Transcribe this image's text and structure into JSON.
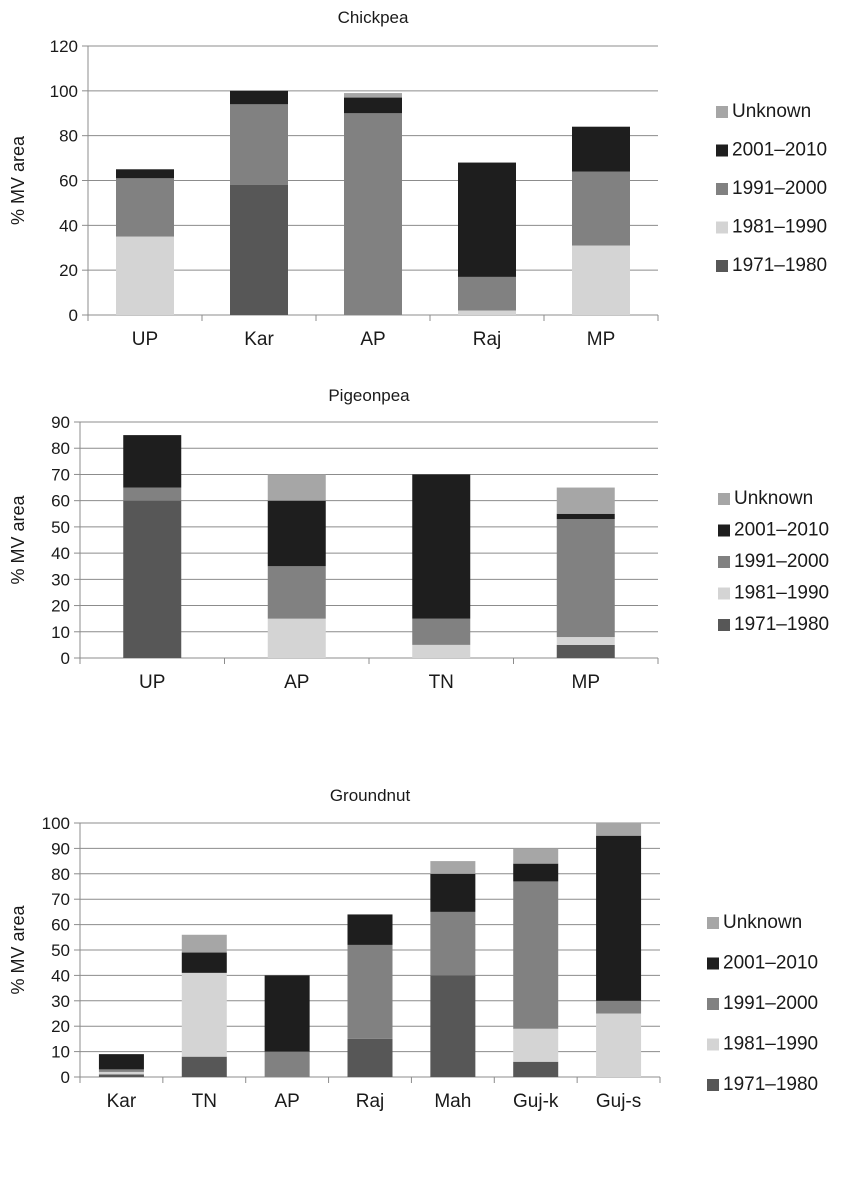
{
  "colors": {
    "Unknown": "#a6a6a6",
    "2001–2010": "#1e1e1e",
    "1991–2000": "#818181",
    "1981–1990": "#d4d4d4",
    "1971–1980": "#575757"
  },
  "legend": [
    "Unknown",
    "2001–2010",
    "1991–2000",
    "1981–1990",
    "1971–1980"
  ],
  "chart_data": [
    {
      "type": "bar",
      "stacked": true,
      "title": "Chickpea",
      "ylabel": "% MV area",
      "ylim": [
        0,
        120
      ],
      "ystep": 20,
      "yticks": [
        "0",
        "20",
        "40",
        "60",
        "80",
        "100",
        "120"
      ],
      "categories": [
        "UP",
        "Kar",
        "AP",
        "Raj",
        "MP"
      ],
      "series": [
        {
          "name": "1971–1980",
          "values": [
            0,
            58,
            0,
            0,
            0
          ]
        },
        {
          "name": "1981–1990",
          "values": [
            35,
            0,
            0,
            2,
            31
          ]
        },
        {
          "name": "1991–2000",
          "values": [
            26,
            36,
            90,
            15,
            33
          ]
        },
        {
          "name": "2001–2010",
          "values": [
            4,
            6,
            7,
            51,
            20
          ]
        },
        {
          "name": "Unknown",
          "values": [
            0,
            0,
            2,
            0,
            0
          ]
        }
      ],
      "legend_position": "right"
    },
    {
      "type": "bar",
      "stacked": true,
      "title": "Pigeonpea",
      "ylabel": "% MV area",
      "ylim": [
        0,
        90
      ],
      "ystep": 10,
      "yticks": [
        "0",
        "10",
        "20",
        "30",
        "40",
        "50",
        "60",
        "70",
        "80",
        "90"
      ],
      "categories": [
        "UP",
        "AP",
        "TN",
        "MP"
      ],
      "series": [
        {
          "name": "1971–1980",
          "values": [
            60,
            0,
            0,
            5
          ]
        },
        {
          "name": "1981–1990",
          "values": [
            0,
            15,
            5,
            3
          ]
        },
        {
          "name": "1991–2000",
          "values": [
            5,
            20,
            10,
            45
          ]
        },
        {
          "name": "2001–2010",
          "values": [
            20,
            25,
            55,
            2
          ]
        },
        {
          "name": "Unknown",
          "values": [
            0,
            10,
            0,
            10
          ]
        }
      ],
      "legend_position": "right"
    },
    {
      "type": "bar",
      "stacked": true,
      "title": "Groundnut",
      "ylabel": "% MV area",
      "ylim": [
        0,
        100
      ],
      "ystep": 10,
      "yticks": [
        "0",
        "10",
        "20",
        "30",
        "40",
        "50",
        "60",
        "70",
        "80",
        "90",
        "100"
      ],
      "categories": [
        "Kar",
        "TN",
        "AP",
        "Raj",
        "Mah",
        "Guj-k",
        "Guj-s"
      ],
      "series": [
        {
          "name": "1971–1980",
          "values": [
            1,
            8,
            0,
            15,
            40,
            6,
            0
          ]
        },
        {
          "name": "1981–1990",
          "values": [
            1,
            33,
            0,
            0,
            0,
            13,
            25
          ]
        },
        {
          "name": "1991–2000",
          "values": [
            1,
            0,
            10,
            37,
            25,
            58,
            5
          ]
        },
        {
          "name": "2001–2010",
          "values": [
            6,
            8,
            30,
            12,
            15,
            7,
            65
          ]
        },
        {
          "name": "Unknown",
          "values": [
            0,
            7,
            0,
            0,
            5,
            6,
            5
          ]
        }
      ],
      "legend_position": "right"
    }
  ]
}
